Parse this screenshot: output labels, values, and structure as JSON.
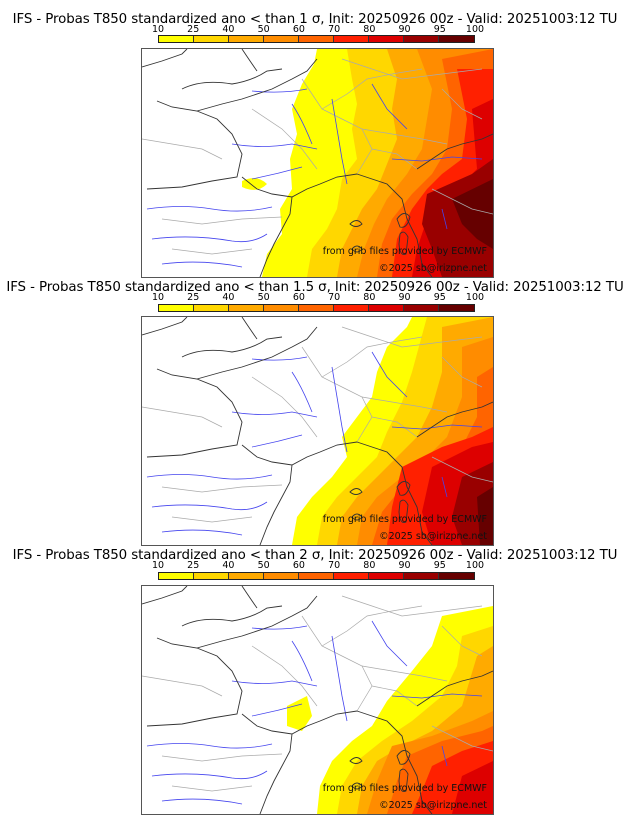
{
  "colorbar": {
    "ticks": [
      "10",
      "25",
      "40",
      "50",
      "60",
      "70",
      "80",
      "90",
      "95",
      "100"
    ],
    "bins": [
      {
        "from": 10,
        "to": 25,
        "color": "#ffff00"
      },
      {
        "from": 25,
        "to": 40,
        "color": "#ffd700"
      },
      {
        "from": 40,
        "to": 50,
        "color": "#ffaa00"
      },
      {
        "from": 50,
        "to": 60,
        "color": "#ff8c00"
      },
      {
        "from": 60,
        "to": 70,
        "color": "#ff6400"
      },
      {
        "from": 70,
        "to": 80,
        "color": "#ff2000"
      },
      {
        "from": 80,
        "to": 90,
        "color": "#dd0000"
      },
      {
        "from": 90,
        "to": 95,
        "color": "#990000"
      },
      {
        "from": 95,
        "to": 100,
        "color": "#660000"
      }
    ]
  },
  "panels": [
    {
      "title": "IFS - Probas T850  standardized ano < than 1 σ, Init: 20250926 00z - Valid: 20251003:12 TU",
      "threshold_sigma": "1",
      "credit_source": "from grib files provided by ECMWF",
      "credit_copyright": "©2025 sb@irizpne.net"
    },
    {
      "title": "IFS - Probas T850  standardized ano < than 1.5 σ, Init: 20250926 00z - Valid: 20251003:12 TU",
      "threshold_sigma": "1.5",
      "credit_source": "from grib files provided by ECMWF",
      "credit_copyright": "©2025 sb@irizpne.net"
    },
    {
      "title": "IFS - Probas T850  standardized ano < than 2 σ, Init: 20250926 00z - Valid: 20251003:12 TU",
      "threshold_sigma": "2",
      "credit_source": "from grib files provided by ECMWF",
      "credit_copyright": "©2025 sb@irizpne.net"
    }
  ],
  "colors": {
    "coast": "#333333",
    "borders": "#aaaaaa",
    "rivers": "#4444ee"
  }
}
